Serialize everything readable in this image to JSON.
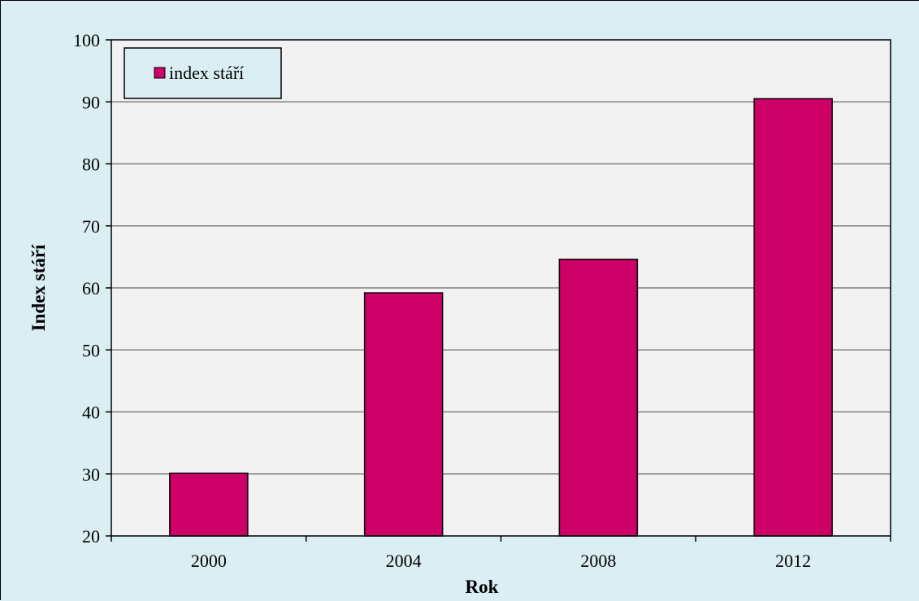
{
  "colors": {
    "background": "#daeef3",
    "plot_area": "#f2f2f2",
    "bar_fill": "#cc0066",
    "gridline": "#808080",
    "border": "#000000"
  },
  "legend": {
    "label": "index stáří",
    "placement": "top-left"
  },
  "chart_data": {
    "type": "bar",
    "title": "",
    "xlabel": "Rok",
    "ylabel": "Index stáří",
    "categories": [
      "2000",
      "2004",
      "2008",
      "2012"
    ],
    "series": [
      {
        "name": "index stáří",
        "values": [
          30.1,
          59.2,
          64.6,
          90.5
        ]
      }
    ],
    "ylim": [
      20,
      100
    ],
    "yticks": [
      20,
      30,
      40,
      50,
      60,
      70,
      80,
      90,
      100
    ],
    "grid": true
  }
}
